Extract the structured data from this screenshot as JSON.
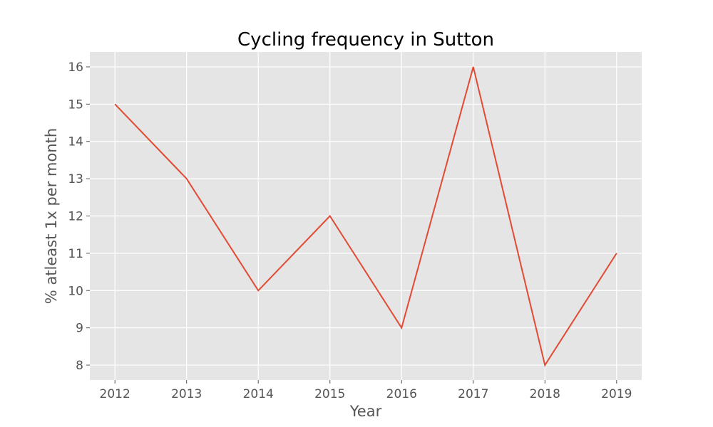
{
  "chart_data": {
    "type": "line",
    "title": "Cycling frequency in Sutton",
    "xlabel": "Year",
    "ylabel": "% atleast 1x per month",
    "x": [
      "2012",
      "2013",
      "2014",
      "2015",
      "2016",
      "2017",
      "2018",
      "2019"
    ],
    "series": [
      {
        "values": [
          15,
          13,
          10,
          12,
          9,
          16,
          8,
          11
        ]
      }
    ],
    "xlim": [
      2011.65,
      2019.35
    ],
    "ylim": [
      7.6,
      16.4
    ],
    "yticks": [
      8,
      9,
      10,
      11,
      12,
      13,
      14,
      15,
      16
    ],
    "grid": true,
    "colors": {
      "background": "#e5e5e5",
      "line": "#e24a33",
      "grid": "#ffffff",
      "text": "#555555"
    }
  }
}
